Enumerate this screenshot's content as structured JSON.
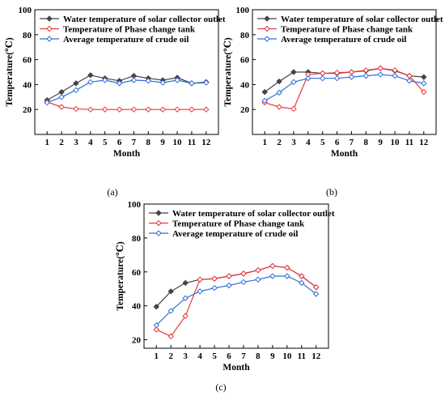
{
  "chart_data": [
    {
      "type": "line",
      "panel_label": "(a)",
      "xlabel": "Month",
      "ylabel": "Temperature(℃)",
      "categories": [
        "1",
        "2",
        "3",
        "4",
        "5",
        "6",
        "7",
        "8",
        "9",
        "10",
        "11",
        "12"
      ],
      "ylim": [
        0,
        100
      ],
      "yticks": [
        "20",
        "40",
        "60",
        "80",
        "100"
      ],
      "legend_position": "top-left",
      "series": [
        {
          "name": "Water temperature of solar collector outlet",
          "color": "#444444",
          "marker": "diamond",
          "values": [
            27.5,
            34,
            41,
            47.5,
            45,
            43,
            47,
            45,
            43.5,
            45.5,
            41,
            42
          ]
        },
        {
          "name": "Temperature of Phase change tank",
          "color": "#e8383d",
          "marker": "diamond-open",
          "values": [
            26,
            22,
            20.5,
            20,
            20,
            20,
            20,
            20,
            20,
            20,
            20,
            20
          ]
        },
        {
          "name": "Average temperature of crude oil",
          "color": "#2f6fd8",
          "marker": "diamond-open",
          "values": [
            25.5,
            30,
            35.5,
            42,
            43.5,
            41,
            43.5,
            43,
            41.5,
            43.5,
            41,
            41.5
          ]
        }
      ]
    },
    {
      "type": "line",
      "panel_label": "(b)",
      "xlabel": "Month",
      "ylabel": "Temperature(℃)",
      "categories": [
        "1",
        "2",
        "3",
        "4",
        "5",
        "6",
        "7",
        "8",
        "9",
        "10",
        "11",
        "12"
      ],
      "ylim": [
        0,
        100
      ],
      "yticks": [
        "20",
        "40",
        "60",
        "80",
        "100"
      ],
      "legend_position": "top-left",
      "series": [
        {
          "name": "Water temperature of solar collector outlet",
          "color": "#444444",
          "marker": "diamond",
          "values": [
            34,
            42.5,
            50,
            50,
            49,
            49,
            50,
            51,
            53,
            51,
            47,
            46
          ]
        },
        {
          "name": "Temperature of Phase change tank",
          "color": "#e8383d",
          "marker": "diamond-open",
          "values": [
            25.5,
            22,
            20.5,
            48,
            49,
            49.5,
            50,
            51.5,
            53,
            51.5,
            47,
            34
          ]
        },
        {
          "name": "Average temperature of crude oil",
          "color": "#2f6fd8",
          "marker": "diamond-open",
          "values": [
            27,
            33.5,
            42,
            45,
            45,
            45,
            46,
            47,
            48,
            47,
            43,
            41
          ]
        }
      ]
    },
    {
      "type": "line",
      "panel_label": "(c)",
      "xlabel": "Month",
      "ylabel": "Temperature(℃)",
      "categories": [
        "1",
        "2",
        "3",
        "4",
        "5",
        "6",
        "7",
        "8",
        "9",
        "10",
        "11",
        "12"
      ],
      "ylim": [
        15,
        100
      ],
      "yticks": [
        "20",
        "40",
        "60",
        "80",
        "100"
      ],
      "legend_position": "top-left",
      "series": [
        {
          "name": "Water temperature of solar collector outlet",
          "color": "#444444",
          "marker": "diamond",
          "values": [
            39.5,
            48.5,
            53.5,
            55.5,
            56,
            57.5,
            59,
            61,
            63.5,
            62.5,
            57.5,
            51
          ]
        },
        {
          "name": "Temperature of Phase change tank",
          "color": "#e8383d",
          "marker": "diamond-open",
          "values": [
            26,
            22,
            34,
            55.5,
            56,
            57.5,
            59,
            61,
            63.5,
            62.5,
            57.5,
            51
          ]
        },
        {
          "name": "Average temperature of crude oil",
          "color": "#2f6fd8",
          "marker": "diamond-open",
          "values": [
            28.5,
            37,
            44.5,
            48.5,
            50.5,
            52,
            54,
            55.5,
            57.5,
            57.5,
            53.5,
            47
          ]
        }
      ]
    }
  ]
}
